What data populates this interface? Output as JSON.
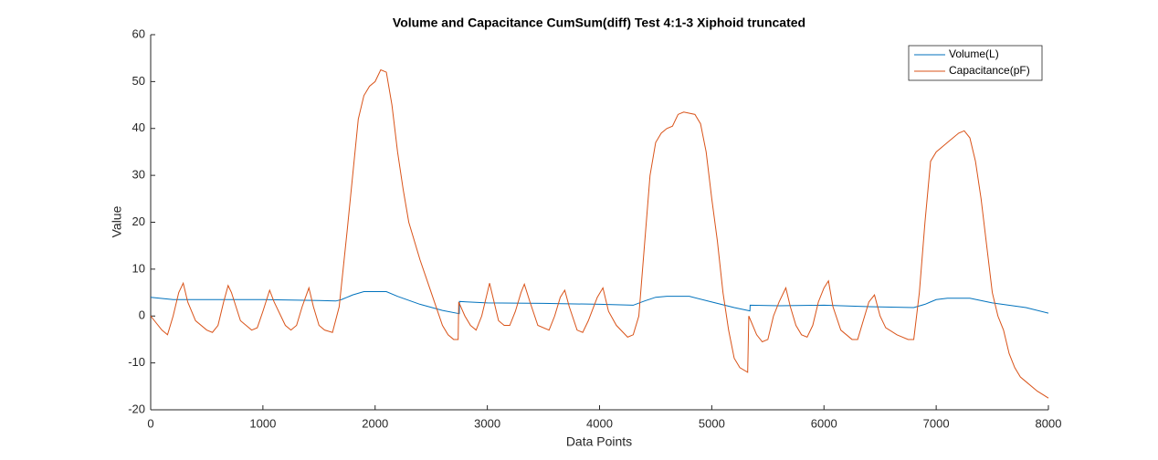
{
  "chart_data": {
    "type": "line",
    "title": "Volume and Capacitance CumSum(diff) Test 4:1-3 Xiphoid truncated",
    "xlabel": "Data Points",
    "ylabel": "Value",
    "xlim": [
      0,
      8000
    ],
    "xticks": [
      0,
      1000,
      2000,
      3000,
      4000,
      5000,
      6000,
      7000,
      8000
    ],
    "ylim": [
      -20,
      60
    ],
    "yticks": [
      -20,
      -10,
      0,
      10,
      20,
      30,
      40,
      50,
      60
    ],
    "grid": false,
    "legend": "northeast",
    "series": [
      {
        "name": "Volume(L)",
        "color": "#0072bd",
        "x": [
          0,
          200,
          500,
          1000,
          1500,
          1650,
          1700,
          1800,
          1900,
          2100,
          2200,
          2400,
          2600,
          2750,
          2752,
          3000,
          3500,
          4000,
          4300,
          4400,
          4500,
          4600,
          4800,
          5000,
          5200,
          5340,
          5342,
          5600,
          6000,
          6400,
          6800,
          6900,
          7000,
          7100,
          7300,
          7500,
          7800,
          8000
        ],
        "values": [
          4,
          3.5,
          3.5,
          3.5,
          3.3,
          3.2,
          3.5,
          4.5,
          5.2,
          5.2,
          4.2,
          2.5,
          1.2,
          0.5,
          3.1,
          2.8,
          2.7,
          2.5,
          2.3,
          3.2,
          4,
          4.2,
          4.2,
          3,
          1.8,
          1.1,
          2.3,
          2.2,
          2.3,
          2,
          1.8,
          2.5,
          3.5,
          3.8,
          3.8,
          2.8,
          1.8,
          0.6
        ]
      },
      {
        "name": "Capacitance(pF)",
        "color": "#d95319",
        "x": [
          0,
          100,
          150,
          200,
          250,
          290,
          330,
          400,
          500,
          550,
          600,
          650,
          690,
          720,
          800,
          900,
          950,
          1000,
          1060,
          1100,
          1200,
          1250,
          1300,
          1350,
          1410,
          1450,
          1500,
          1550,
          1620,
          1680,
          1750,
          1800,
          1850,
          1900,
          1950,
          2000,
          2050,
          2100,
          2150,
          2200,
          2250,
          2300,
          2400,
          2500,
          2600,
          2650,
          2700,
          2740,
          2745,
          2800,
          2850,
          2900,
          2950,
          3000,
          3020,
          3060,
          3100,
          3150,
          3200,
          3250,
          3300,
          3330,
          3380,
          3450,
          3550,
          3600,
          3650,
          3690,
          3730,
          3800,
          3850,
          3900,
          3980,
          4030,
          4080,
          4150,
          4250,
          4300,
          4350,
          4400,
          4450,
          4500,
          4550,
          4600,
          4650,
          4700,
          4750,
          4850,
          4900,
          4950,
          5000,
          5050,
          5100,
          5150,
          5200,
          5250,
          5320,
          5330,
          5400,
          5450,
          5500,
          5550,
          5600,
          5660,
          5700,
          5750,
          5800,
          5850,
          5900,
          5950,
          6000,
          6040,
          6080,
          6150,
          6250,
          6300,
          6350,
          6400,
          6450,
          6500,
          6550,
          6650,
          6750,
          6800,
          6850,
          6900,
          6950,
          7000,
          7100,
          7200,
          7250,
          7300,
          7350,
          7400,
          7450,
          7500,
          7550,
          7600,
          7650,
          7700,
          7750,
          7800,
          7900,
          8000
        ],
        "values": [
          0,
          -3,
          -4,
          0,
          5,
          7,
          3,
          -1,
          -3,
          -3.5,
          -2,
          3,
          6.5,
          5,
          -1,
          -3,
          -2.5,
          1,
          5.5,
          3,
          -2,
          -3,
          -2,
          2,
          6,
          2,
          -2,
          -3,
          -3.5,
          2,
          18,
          30,
          42,
          47,
          49,
          50,
          52.5,
          52,
          45,
          35,
          27,
          20,
          12,
          5,
          -2,
          -4,
          -5,
          -5,
          3,
          0,
          -2,
          -3,
          0,
          5,
          7,
          3,
          -1,
          -2,
          -2,
          1,
          5,
          6.8,
          3,
          -2,
          -3,
          0,
          4,
          5.5,
          2,
          -3,
          -3.5,
          -1,
          4,
          6,
          1,
          -2,
          -4.5,
          -4,
          0,
          15,
          30,
          37,
          39,
          40,
          40.5,
          43,
          43.5,
          43,
          41,
          35,
          25,
          16,
          5,
          -3,
          -9,
          -11,
          -12,
          0,
          -4,
          -5.5,
          -5,
          0,
          3,
          6,
          2,
          -2,
          -4,
          -4.5,
          -2,
          3,
          6,
          7.5,
          2,
          -3,
          -5,
          -5,
          -1,
          3,
          4.5,
          0,
          -2.5,
          -4,
          -5,
          -5,
          5,
          20,
          33,
          35,
          37,
          39,
          39.5,
          38,
          33,
          25,
          15,
          5,
          0,
          -3,
          -8,
          -11,
          -13,
          -14,
          -16,
          -17.5
        ]
      }
    ]
  }
}
